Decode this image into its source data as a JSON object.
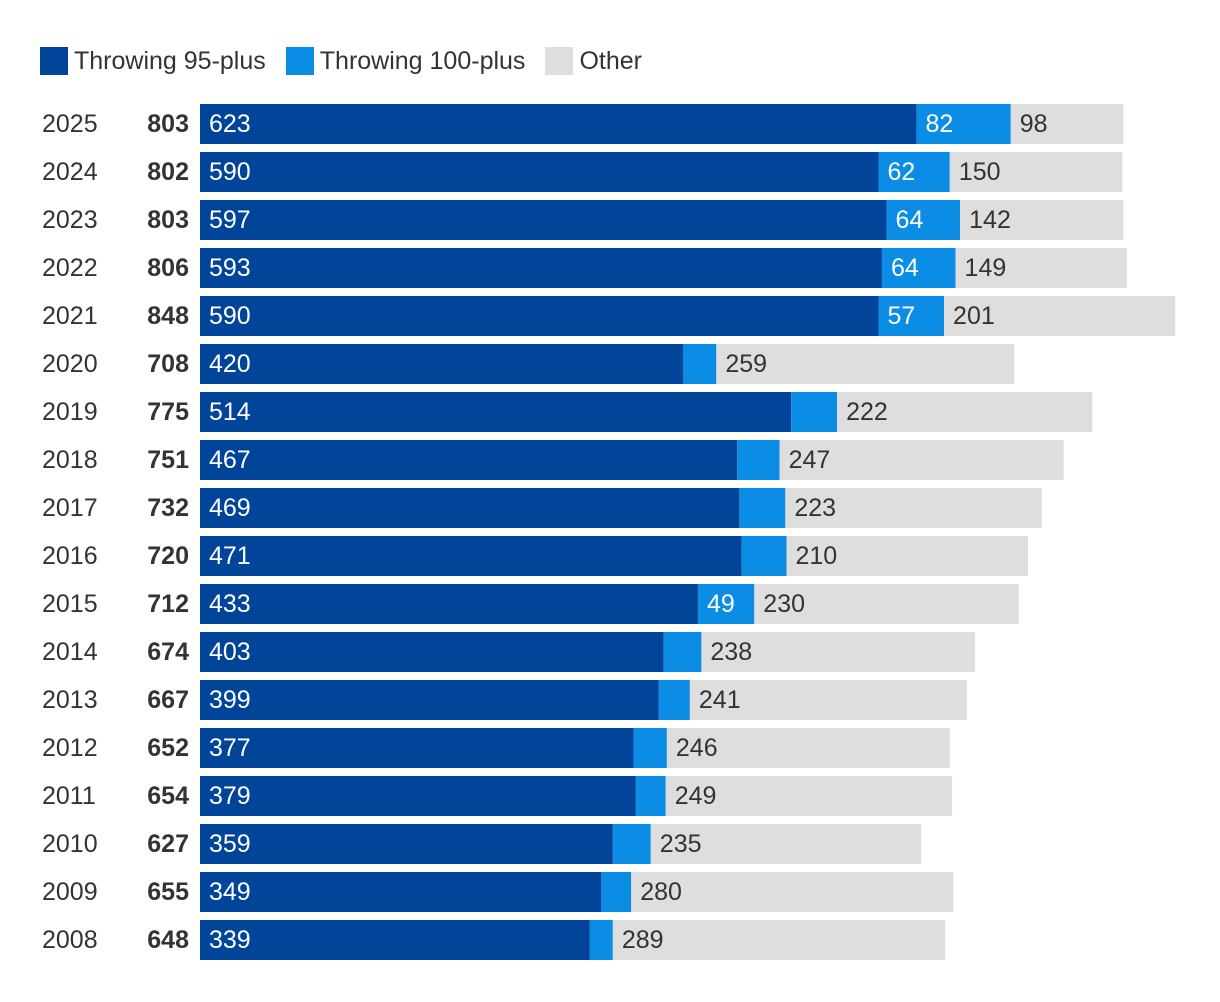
{
  "legend": {
    "items": [
      {
        "label": "Throwing 95-plus",
        "color": "#00459a"
      },
      {
        "label": "Throwing 100-plus",
        "color": "#0b8de6"
      },
      {
        "label": "Other",
        "color": "#dedede"
      }
    ]
  },
  "chart_data": {
    "type": "bar",
    "orientation": "horizontal",
    "stacked": true,
    "title": "",
    "xlabel": "",
    "ylabel": "",
    "legend_position": "top-left",
    "grid": false,
    "categories": [
      "2025",
      "2024",
      "2023",
      "2022",
      "2021",
      "2020",
      "2019",
      "2018",
      "2017",
      "2016",
      "2015",
      "2014",
      "2013",
      "2012",
      "2011",
      "2010",
      "2009",
      "2008"
    ],
    "totals": [
      803,
      802,
      803,
      806,
      848,
      708,
      775,
      751,
      732,
      720,
      712,
      674,
      667,
      652,
      654,
      627,
      655,
      648
    ],
    "series": [
      {
        "name": "Throwing 95-plus",
        "color": "#00459a",
        "values": [
          623,
          590,
          597,
          593,
          590,
          420,
          514,
          467,
          469,
          471,
          433,
          403,
          399,
          377,
          379,
          359,
          349,
          339
        ],
        "labels": [
          "623",
          "590",
          "597",
          "593",
          "590",
          "420",
          "514",
          "467",
          "469",
          "471",
          "433",
          "403",
          "399",
          "377",
          "379",
          "359",
          "349",
          "339"
        ]
      },
      {
        "name": "Throwing 100-plus",
        "color": "#0b8de6",
        "values": [
          82,
          62,
          64,
          64,
          57,
          29,
          40,
          37,
          40,
          39,
          49,
          33,
          27,
          29,
          26,
          33,
          26,
          20
        ],
        "labels": [
          "82",
          "62",
          "64",
          "64",
          "57",
          "",
          "",
          "",
          "",
          "",
          "49",
          "",
          "",
          "",
          "",
          "",
          "",
          ""
        ]
      },
      {
        "name": "Other",
        "color": "#dedede",
        "values": [
          98,
          150,
          142,
          149,
          201,
          259,
          222,
          247,
          223,
          210,
          230,
          238,
          241,
          246,
          249,
          235,
          280,
          289
        ],
        "labels": [
          "98",
          "150",
          "142",
          "149",
          "201",
          "259",
          "222",
          "247",
          "223",
          "210",
          "230",
          "238",
          "241",
          "246",
          "249",
          "235",
          "280",
          "289"
        ]
      }
    ]
  }
}
